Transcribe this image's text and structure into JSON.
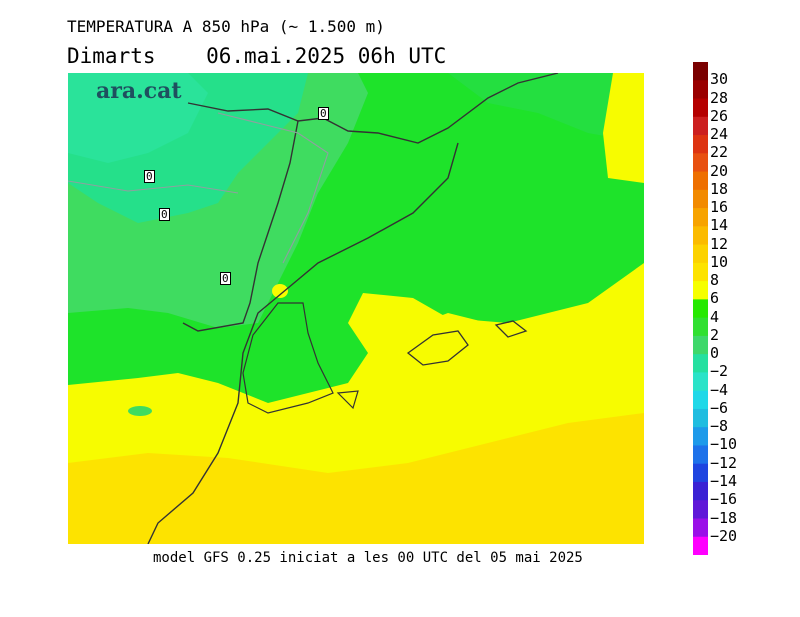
{
  "header": {
    "title": "TEMPERATURA A 850 hPa (~ 1.500 m)",
    "subtitle": "Dimarts    06.mai.2025 06h UTC"
  },
  "footer": {
    "text": "model GFS 0.25 iniciat a les 00 UTC del 05 mai 2025"
  },
  "logo": {
    "text": "ara.cat"
  },
  "contour_labels": [
    "0",
    "0",
    "0",
    "0"
  ],
  "colorbar": {
    "labels": [
      "30",
      "28",
      "26",
      "24",
      "22",
      "20",
      "18",
      "16",
      "14",
      "12",
      "10",
      "8",
      "6",
      "4",
      "2",
      "0",
      "−2",
      "−4",
      "−6",
      "−8",
      "−10",
      "−12",
      "−14",
      "−16",
      "−18",
      "−20"
    ],
    "colors": [
      "#7a0000",
      "#9a0000",
      "#b50000",
      "#cc1f1f",
      "#dd3311",
      "#e85010",
      "#ee6f00",
      "#f28a00",
      "#f7a300",
      "#fbbb00",
      "#fcd200",
      "#fde300",
      "#f6ff00",
      "#25e900",
      "#30e030",
      "#3ed86a",
      "#25e0a0",
      "#2be3c8",
      "#20d8e8",
      "#20bde0",
      "#1e9aea",
      "#1e72ea",
      "#1f45e0",
      "#3a22d4",
      "#6018d8",
      "#9a10e8",
      "#ff00ff"
    ]
  }
}
